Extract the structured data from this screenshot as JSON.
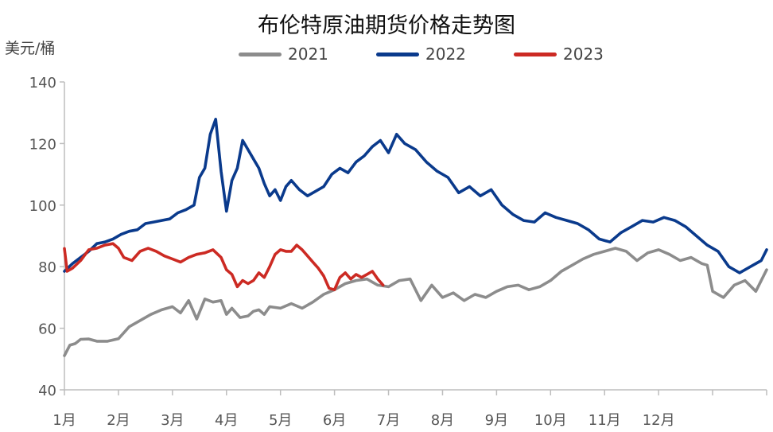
{
  "chart_data": {
    "type": "line",
    "title": "布伦特原油期货价格走势图",
    "ylabel": "美元/桶",
    "ylim": [
      40,
      140
    ],
    "yticks": [
      40,
      60,
      80,
      100,
      120,
      140
    ],
    "xticks": [
      "1月",
      "2月",
      "3月",
      "4月",
      "5月",
      "6月",
      "7月",
      "8月",
      "9月",
      "10月",
      "11月",
      "12月"
    ],
    "x_unit": "month",
    "legend_position": "top",
    "grid": false,
    "series": [
      {
        "name": "2021",
        "color": "#8c8c8c",
        "x": [
          0.0,
          0.1,
          0.2,
          0.3,
          0.45,
          0.6,
          0.8,
          1.0,
          1.2,
          1.4,
          1.6,
          1.8,
          2.0,
          2.15,
          2.3,
          2.45,
          2.6,
          2.75,
          2.9,
          3.0,
          3.1,
          3.25,
          3.4,
          3.5,
          3.6,
          3.7,
          3.8,
          4.0,
          4.2,
          4.4,
          4.6,
          4.8,
          5.0,
          5.2,
          5.4,
          5.6,
          5.8,
          6.0,
          6.2,
          6.4,
          6.6,
          6.8,
          7.0,
          7.2,
          7.4,
          7.6,
          7.8,
          8.0,
          8.2,
          8.4,
          8.6,
          8.8,
          9.0,
          9.2,
          9.4,
          9.6,
          9.8,
          10.0,
          10.2,
          10.4,
          10.6,
          10.8,
          11.0,
          11.2,
          11.4,
          11.6,
          11.8,
          11.9,
          12.0,
          12.2,
          12.4,
          12.6,
          12.8,
          13.0
        ],
        "values": [
          51.1,
          54.5,
          55.0,
          56.4,
          56.5,
          55.8,
          55.8,
          56.6,
          60.5,
          62.5,
          64.5,
          66.0,
          67.0,
          65.0,
          69.0,
          63.0,
          69.5,
          68.5,
          69.0,
          64.5,
          66.5,
          63.5,
          64.0,
          65.5,
          66.0,
          64.5,
          67.0,
          66.5,
          68.0,
          66.5,
          68.5,
          71.0,
          72.5,
          74.5,
          75.5,
          76.0,
          74.0,
          73.5,
          75.5,
          76.0,
          69.0,
          74.0,
          70.0,
          71.5,
          69.0,
          71.0,
          70.0,
          72.0,
          73.5,
          74.0,
          72.5,
          73.5,
          75.5,
          78.5,
          80.5,
          82.5,
          84.0,
          85.0,
          86.0,
          85.0,
          82.0,
          84.5,
          85.5,
          84.0,
          82.0,
          83.0,
          81.0,
          80.5,
          72.0,
          70.0,
          74.0,
          75.5,
          72.0,
          79.0
        ]
      },
      {
        "name": "2022",
        "color": "#0a3a8c",
        "x": [
          0.0,
          0.15,
          0.3,
          0.45,
          0.6,
          0.75,
          0.9,
          1.05,
          1.2,
          1.35,
          1.5,
          1.65,
          1.8,
          1.95,
          2.1,
          2.25,
          2.4,
          2.5,
          2.6,
          2.7,
          2.8,
          2.9,
          3.0,
          3.1,
          3.2,
          3.3,
          3.4,
          3.5,
          3.6,
          3.7,
          3.8,
          3.9,
          4.0,
          4.1,
          4.2,
          4.35,
          4.5,
          4.65,
          4.8,
          4.95,
          5.1,
          5.25,
          5.4,
          5.55,
          5.7,
          5.85,
          6.0,
          6.15,
          6.3,
          6.5,
          6.7,
          6.9,
          7.1,
          7.3,
          7.5,
          7.7,
          7.9,
          8.1,
          8.3,
          8.5,
          8.7,
          8.9,
          9.1,
          9.3,
          9.5,
          9.7,
          9.9,
          10.1,
          10.3,
          10.5,
          10.7,
          10.9,
          11.1,
          11.3,
          11.5,
          11.7,
          11.9,
          12.1,
          12.3,
          12.5,
          12.7,
          12.9,
          13.0
        ],
        "values": [
          78.5,
          81.0,
          83.0,
          85.0,
          87.5,
          88.0,
          89.0,
          90.5,
          91.5,
          92.0,
          94.0,
          94.5,
          95.0,
          95.5,
          97.5,
          98.5,
          100.0,
          109.0,
          112.0,
          123.0,
          127.9,
          111.0,
          98.0,
          108.0,
          112.0,
          121.0,
          118.0,
          115.0,
          112.0,
          107.0,
          103.0,
          105.0,
          101.5,
          106.0,
          108.0,
          105.0,
          103.0,
          104.5,
          106.0,
          110.0,
          112.0,
          110.5,
          114.0,
          116.0,
          119.0,
          121.0,
          117.0,
          123.0,
          120.0,
          118.0,
          114.0,
          111.0,
          109.0,
          104.0,
          106.0,
          103.0,
          105.0,
          100.0,
          97.0,
          95.0,
          94.5,
          97.5,
          96.0,
          95.0,
          94.0,
          92.0,
          89.0,
          88.0,
          91.0,
          93.0,
          95.0,
          94.5,
          96.0,
          95.0,
          93.0,
          90.0,
          87.0,
          85.0,
          80.0,
          78.0,
          80.0,
          82.0,
          85.5
        ]
      },
      {
        "name": "2023",
        "color": "#cc2a23",
        "x": [
          0.0,
          0.05,
          0.15,
          0.3,
          0.45,
          0.6,
          0.75,
          0.9,
          1.0,
          1.1,
          1.25,
          1.4,
          1.55,
          1.7,
          1.85,
          2.0,
          2.15,
          2.3,
          2.45,
          2.6,
          2.75,
          2.9,
          3.0,
          3.1,
          3.2,
          3.3,
          3.4,
          3.5,
          3.6,
          3.7,
          3.8,
          3.9,
          4.0,
          4.1,
          4.2,
          4.3,
          4.4,
          4.5,
          4.6,
          4.7,
          4.8,
          4.9,
          5.0,
          5.1,
          5.2,
          5.3,
          5.4,
          5.5,
          5.6,
          5.7,
          5.8,
          5.9
        ],
        "values": [
          85.9,
          78.5,
          79.5,
          82.0,
          85.5,
          86.0,
          87.0,
          87.5,
          86.0,
          83.0,
          82.0,
          85.0,
          86.0,
          85.0,
          83.5,
          82.5,
          81.5,
          83.0,
          84.0,
          84.5,
          85.5,
          83.0,
          79.0,
          77.5,
          73.5,
          75.5,
          74.5,
          75.5,
          78.0,
          76.5,
          80.0,
          84.0,
          85.5,
          85.0,
          85.0,
          87.0,
          85.5,
          83.5,
          81.5,
          79.5,
          77.0,
          73.0,
          72.5,
          76.5,
          78.0,
          76.0,
          77.5,
          76.5,
          77.5,
          78.5,
          76.0,
          74.0
        ]
      }
    ]
  }
}
